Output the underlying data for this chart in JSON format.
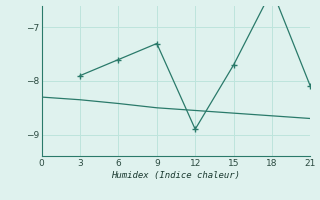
{
  "xlabel": "Humidex (Indice chaleur)",
  "line1_x": [
    3,
    6,
    9,
    12,
    15,
    18,
    21
  ],
  "line1_y": [
    -7.9,
    -7.6,
    -7.3,
    -8.9,
    -7.7,
    -6.3,
    -8.1
  ],
  "line2_x": [
    0,
    3,
    6,
    9,
    12,
    15,
    18,
    21
  ],
  "line2_y": [
    -8.3,
    -8.35,
    -8.42,
    -8.5,
    -8.55,
    -8.6,
    -8.65,
    -8.7
  ],
  "color": "#2a7a6a",
  "bg_color": "#dff2ee",
  "grid_color": "#bde4dc",
  "xlim": [
    0,
    21
  ],
  "ylim": [
    -9.4,
    -6.6
  ],
  "yticks": [
    -9,
    -8,
    -7
  ],
  "xticks": [
    0,
    3,
    6,
    9,
    12,
    15,
    18,
    21
  ]
}
